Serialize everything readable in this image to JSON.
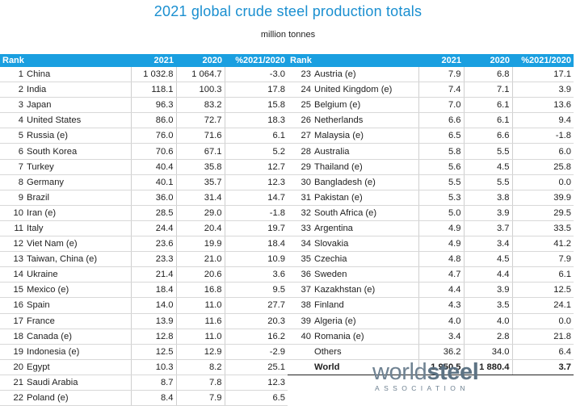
{
  "title": "2021 global crude steel production totals",
  "subtitle": "million tonnes",
  "headers": {
    "rank": "Rank",
    "y2021": "2021",
    "y2020": "2020",
    "pct": "%2021/2020"
  },
  "left_rows": [
    {
      "rank": "1",
      "country": "China",
      "v2021": "1 032.8",
      "v2020": "1 064.7",
      "pct": "-3.0"
    },
    {
      "rank": "2",
      "country": "India",
      "v2021": "118.1",
      "v2020": "100.3",
      "pct": "17.8"
    },
    {
      "rank": "3",
      "country": "Japan",
      "v2021": "96.3",
      "v2020": "83.2",
      "pct": "15.8"
    },
    {
      "rank": "4",
      "country": "United States",
      "v2021": "86.0",
      "v2020": "72.7",
      "pct": "18.3"
    },
    {
      "rank": "5",
      "country": "Russia (e)",
      "v2021": "76.0",
      "v2020": "71.6",
      "pct": "6.1"
    },
    {
      "rank": "6",
      "country": "South Korea",
      "v2021": "70.6",
      "v2020": "67.1",
      "pct": "5.2"
    },
    {
      "rank": "7",
      "country": "Turkey",
      "v2021": "40.4",
      "v2020": "35.8",
      "pct": "12.7"
    },
    {
      "rank": "8",
      "country": "Germany",
      "v2021": "40.1",
      "v2020": "35.7",
      "pct": "12.3"
    },
    {
      "rank": "9",
      "country": "Brazil",
      "v2021": "36.0",
      "v2020": "31.4",
      "pct": "14.7"
    },
    {
      "rank": "10",
      "country": "Iran (e)",
      "v2021": "28.5",
      "v2020": "29.0",
      "pct": "-1.8"
    },
    {
      "rank": "11",
      "country": "Italy",
      "v2021": "24.4",
      "v2020": "20.4",
      "pct": "19.7"
    },
    {
      "rank": "12",
      "country": "Viet Nam (e)",
      "v2021": "23.6",
      "v2020": "19.9",
      "pct": "18.4"
    },
    {
      "rank": "13",
      "country": "Taiwan, China (e)",
      "v2021": "23.3",
      "v2020": "21.0",
      "pct": "10.9"
    },
    {
      "rank": "14",
      "country": "Ukraine",
      "v2021": "21.4",
      "v2020": "20.6",
      "pct": "3.6"
    },
    {
      "rank": "15",
      "country": "Mexico (e)",
      "v2021": "18.4",
      "v2020": "16.8",
      "pct": "9.5"
    },
    {
      "rank": "16",
      "country": "Spain",
      "v2021": "14.0",
      "v2020": "11.0",
      "pct": "27.7"
    },
    {
      "rank": "17",
      "country": "France",
      "v2021": "13.9",
      "v2020": "11.6",
      "pct": "20.3"
    },
    {
      "rank": "18",
      "country": "Canada (e)",
      "v2021": "12.8",
      "v2020": "11.0",
      "pct": "16.2"
    },
    {
      "rank": "19",
      "country": "Indonesia (e)",
      "v2021": "12.5",
      "v2020": "12.9",
      "pct": "-2.9"
    },
    {
      "rank": "20",
      "country": "Egypt",
      "v2021": "10.3",
      "v2020": "8.2",
      "pct": "25.1"
    },
    {
      "rank": "21",
      "country": "Saudi Arabia",
      "v2021": "8.7",
      "v2020": "7.8",
      "pct": "12.3"
    },
    {
      "rank": "22",
      "country": "Poland (e)",
      "v2021": "8.4",
      "v2020": "7.9",
      "pct": "6.5"
    }
  ],
  "right_rows": [
    {
      "rank": "23",
      "country": "Austria (e)",
      "v2021": "7.9",
      "v2020": "6.8",
      "pct": "17.1"
    },
    {
      "rank": "24",
      "country": "United Kingdom (e)",
      "v2021": "7.4",
      "v2020": "7.1",
      "pct": "3.9"
    },
    {
      "rank": "25",
      "country": "Belgium (e)",
      "v2021": "7.0",
      "v2020": "6.1",
      "pct": "13.6"
    },
    {
      "rank": "26",
      "country": "Netherlands",
      "v2021": "6.6",
      "v2020": "6.1",
      "pct": "9.4"
    },
    {
      "rank": "27",
      "country": "Malaysia (e)",
      "v2021": "6.5",
      "v2020": "6.6",
      "pct": "-1.8"
    },
    {
      "rank": "28",
      "country": "Australia",
      "v2021": "5.8",
      "v2020": "5.5",
      "pct": "6.0"
    },
    {
      "rank": "29",
      "country": "Thailand (e)",
      "v2021": "5.6",
      "v2020": "4.5",
      "pct": "25.8"
    },
    {
      "rank": "30",
      "country": "Bangladesh (e)",
      "v2021": "5.5",
      "v2020": "5.5",
      "pct": "0.0"
    },
    {
      "rank": "31",
      "country": "Pakistan (e)",
      "v2021": "5.3",
      "v2020": "3.8",
      "pct": "39.9"
    },
    {
      "rank": "32",
      "country": "South Africa (e)",
      "v2021": "5.0",
      "v2020": "3.9",
      "pct": "29.5"
    },
    {
      "rank": "33",
      "country": "Argentina",
      "v2021": "4.9",
      "v2020": "3.7",
      "pct": "33.5"
    },
    {
      "rank": "34",
      "country": "Slovakia",
      "v2021": "4.9",
      "v2020": "3.4",
      "pct": "41.2"
    },
    {
      "rank": "35",
      "country": "Czechia",
      "v2021": "4.8",
      "v2020": "4.5",
      "pct": "7.9"
    },
    {
      "rank": "36",
      "country": "Sweden",
      "v2021": "4.7",
      "v2020": "4.4",
      "pct": "6.1"
    },
    {
      "rank": "37",
      "country": "Kazakhstan (e)",
      "v2021": "4.4",
      "v2020": "3.9",
      "pct": "12.5"
    },
    {
      "rank": "38",
      "country": "Finland",
      "v2021": "4.3",
      "v2020": "3.5",
      "pct": "24.1"
    },
    {
      "rank": "39",
      "country": "Algeria (e)",
      "v2021": "4.0",
      "v2020": "4.0",
      "pct": "0.0"
    },
    {
      "rank": "40",
      "country": "Romania (e)",
      "v2021": "3.4",
      "v2020": "2.8",
      "pct": "21.8"
    },
    {
      "rank": "",
      "country": "Others",
      "v2021": "36.2",
      "v2020": "34.0",
      "pct": "6.4"
    }
  ],
  "world": {
    "label": "World",
    "v2021": "1 950.5",
    "v2020": "1 880.4",
    "pct": "3.7"
  },
  "logo": {
    "word_light": "world",
    "word_bold": "steel",
    "tagline": "ASSOCIATION"
  },
  "colors": {
    "header_bg": "#1a9fe0",
    "title": "#1a8fd0",
    "logo": "#6f8292"
  }
}
